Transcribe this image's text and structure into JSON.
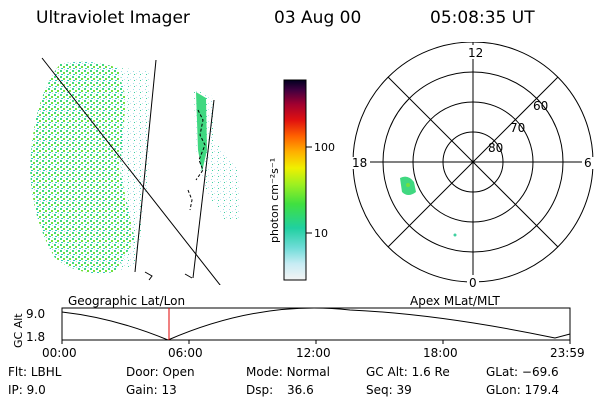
{
  "header": {
    "instrument": "Ultraviolet Imager",
    "date": "03 Aug 00",
    "time": "05:08:35 UT"
  },
  "colorbar": {
    "unit_label": "photon cm⁻²s⁻¹",
    "tick_100": "100",
    "tick_10": "10"
  },
  "polar_plot": {
    "mlt_12": "12",
    "mlt_18": "18",
    "mlt_6": "6",
    "mlt_0": "0",
    "lat_60": "60",
    "lat_70": "70",
    "lat_80": "80"
  },
  "altitude_panel": {
    "geographic_label": "Geographic Lat/Lon",
    "apex_label": "Apex MLat/MLT",
    "axis_label": "GC Alt",
    "y_top": "9.0",
    "y_bottom": "1.8",
    "time_ticks": [
      "00:00",
      "06:00",
      "12:00",
      "18:00",
      "23:59"
    ],
    "marker_color": "#e00000"
  },
  "status": {
    "flt_label": "Flt:",
    "flt_value": "LBHL",
    "ip_label": "IP:",
    "ip_value": "9.0",
    "door_label": "Door:",
    "door_value": "Open",
    "gain_label": "Gain:",
    "gain_value": "13",
    "mode_label": "Mode:",
    "mode_value": "Normal",
    "dsp_label": "Dsp:",
    "dsp_value": "36.6",
    "gcalt_label": "GC Alt:",
    "gcalt_value": "1.6 Re",
    "seq_label": "Seq:",
    "seq_value": "39",
    "glat_label": "GLat:",
    "glat_value": "−69.6",
    "glon_label": "GLon:",
    "glon_value": "179.4"
  }
}
